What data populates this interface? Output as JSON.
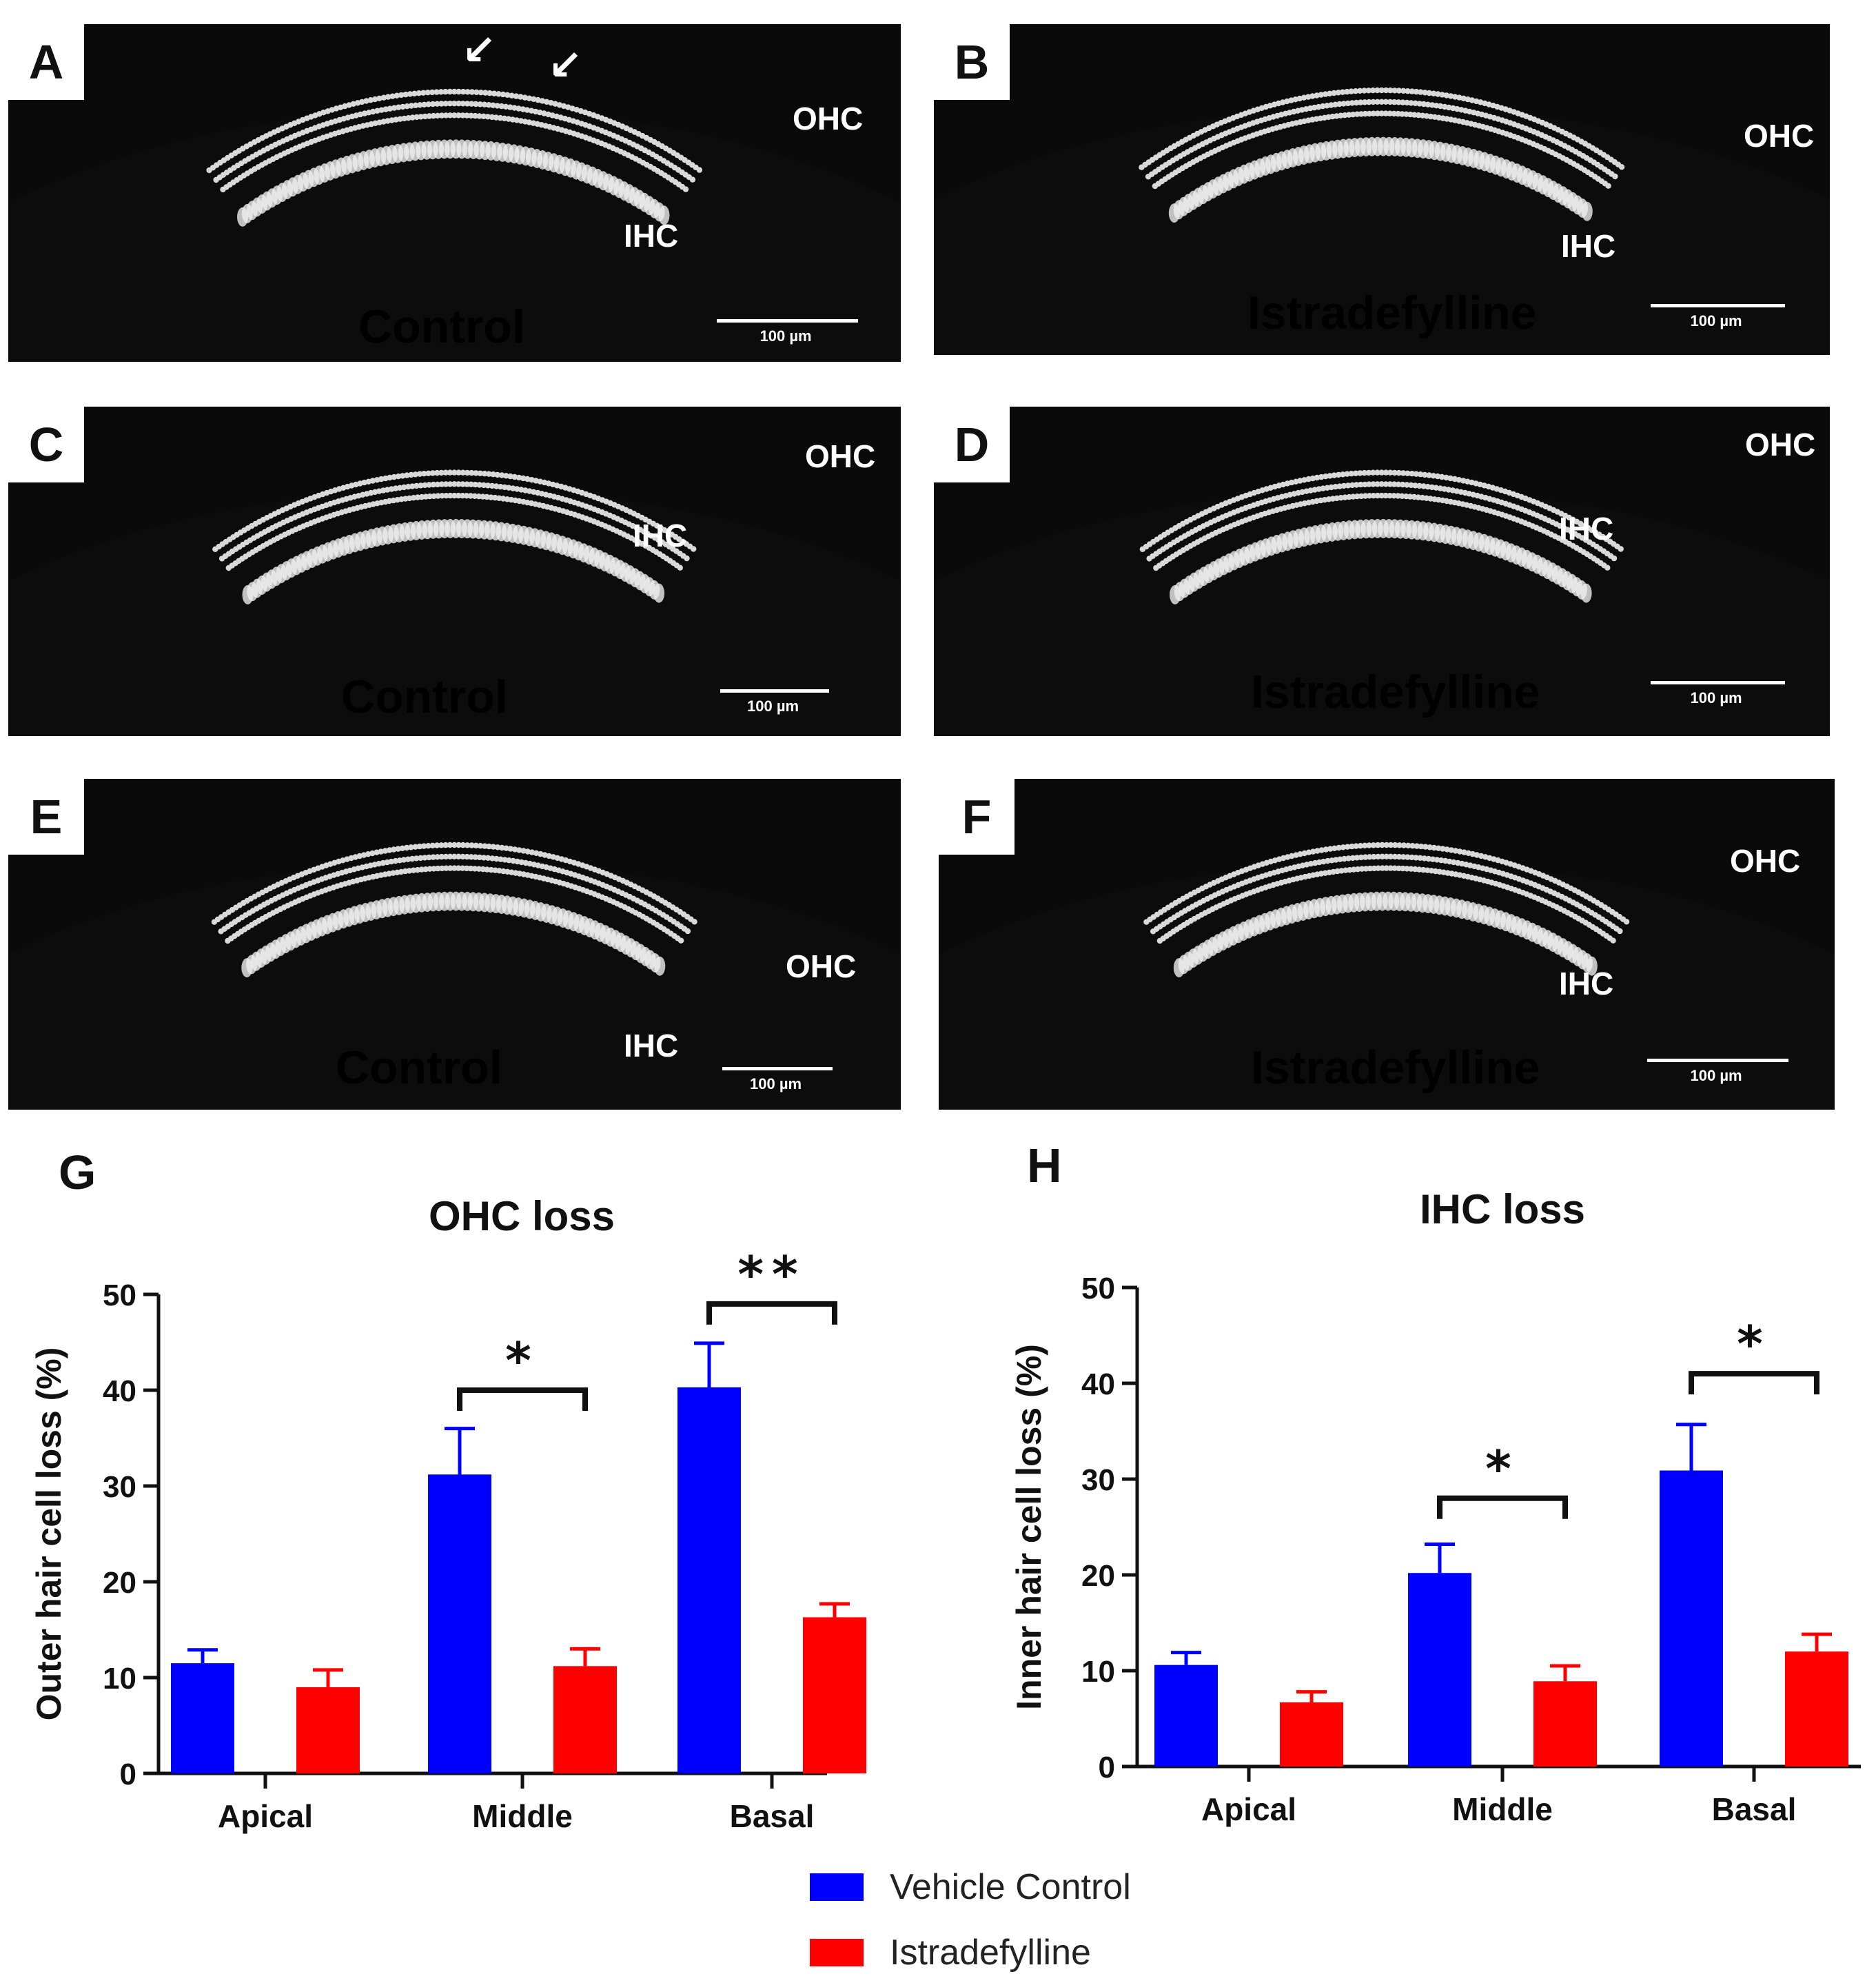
{
  "panels": [
    {
      "letter": "A",
      "condition": "Control",
      "ohc": "OHC",
      "ihc": "IHC",
      "scale": "100 µm"
    },
    {
      "letter": "B",
      "condition": "Istradefylline",
      "ohc": "OHC",
      "ihc": "IHC",
      "scale": "100 µm"
    },
    {
      "letter": "C",
      "condition": "Control",
      "ohc": "OHC",
      "ihc": "IHC",
      "scale": "100 µm"
    },
    {
      "letter": "D",
      "condition": "Istradefylline",
      "ohc": "OHC",
      "ihc": "IHC",
      "scale": "100 µm"
    },
    {
      "letter": "E",
      "condition": "Control",
      "ohc": "OHC",
      "ihc": "IHC",
      "scale": "100 µm"
    },
    {
      "letter": "F",
      "condition": "Istradefylline",
      "ohc": "OHC",
      "ihc": "IHC",
      "scale": "100 µm"
    }
  ],
  "chart_data": [
    {
      "type": "bar",
      "panel_letter": "G",
      "title": "OHC loss",
      "ylabel": "Outer hair cell loss (%)",
      "xlabel": "",
      "ylim": [
        0,
        50
      ],
      "yticks": [
        0,
        10,
        20,
        30,
        40,
        50
      ],
      "categories": [
        "Apical",
        "Middle",
        "Basal"
      ],
      "series": [
        {
          "name": "Vehicle Control",
          "color": "#0000ff",
          "values": [
            11.5,
            31.2,
            40.3
          ],
          "errors": [
            1.4,
            4.8,
            4.6
          ]
        },
        {
          "name": "Istradefylline",
          "color": "#ff0000",
          "values": [
            9.0,
            11.2,
            16.3
          ],
          "errors": [
            1.8,
            1.8,
            1.4
          ]
        }
      ],
      "significance": [
        {
          "category": "Middle",
          "label": "*",
          "level": 40
        },
        {
          "category": "Basal",
          "label": "**",
          "level": 49
        }
      ]
    },
    {
      "type": "bar",
      "panel_letter": "H",
      "title": "IHC loss",
      "ylabel": "Inner hair cell loss (%)",
      "xlabel": "",
      "ylim": [
        0,
        50
      ],
      "yticks": [
        0,
        10,
        20,
        30,
        40,
        50
      ],
      "categories": [
        "Apical",
        "Middle",
        "Basal"
      ],
      "series": [
        {
          "name": "Vehicle Control",
          "color": "#0000ff",
          "values": [
            10.6,
            20.2,
            30.9
          ],
          "errors": [
            1.3,
            3.0,
            4.8
          ]
        },
        {
          "name": "Istradefylline",
          "color": "#ff0000",
          "values": [
            6.7,
            8.9,
            12.0
          ],
          "errors": [
            1.1,
            1.6,
            1.8
          ]
        }
      ],
      "significance": [
        {
          "category": "Middle",
          "label": "*",
          "level": 28
        },
        {
          "category": "Basal",
          "label": "*",
          "level": 41
        }
      ]
    }
  ],
  "legend": [
    {
      "label": "Vehicle Control",
      "color": "#0000ff"
    },
    {
      "label": "Istradefylline",
      "color": "#ff0000"
    }
  ]
}
